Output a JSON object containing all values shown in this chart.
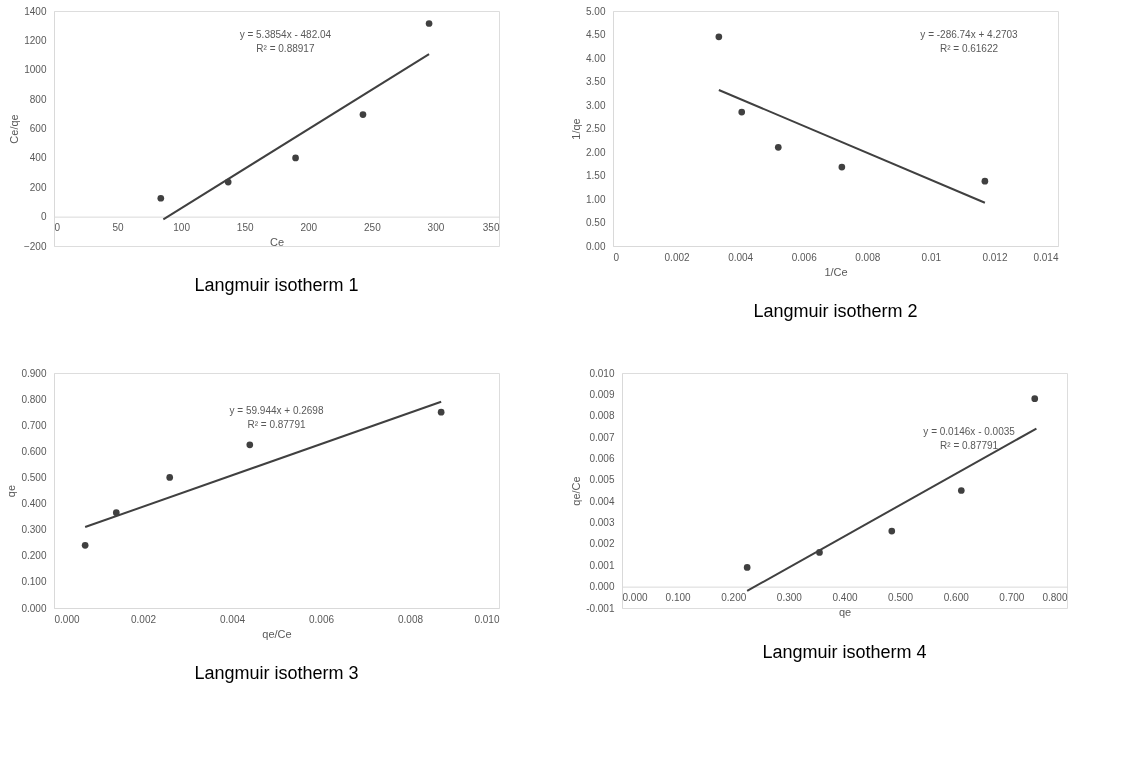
{
  "chart_data": [
    {
      "type": "scatter",
      "title": "Langmuir isotherm 1",
      "xlabel": "Ce",
      "ylabel": "Ce/qe",
      "grid": false,
      "xlim": [
        0,
        350
      ],
      "xticks": [
        0,
        50,
        100,
        150,
        200,
        250,
        300,
        350
      ],
      "ylim": [
        -200,
        1400
      ],
      "yticks": [
        -200,
        0,
        200,
        400,
        600,
        800,
        1000,
        1200,
        1400
      ],
      "series": [
        {
          "marker": "circle",
          "color": "#404040",
          "x": [
            84,
            137,
            190,
            243,
            295
          ],
          "values": [
            125,
            235,
            400,
            695,
            1315
          ]
        },
        {
          "type": "line",
          "marker": "none",
          "line_style": "solid",
          "color": "#404040",
          "x": [
            86,
            295
          ],
          "values": [
            -19,
            1107
          ]
        }
      ],
      "annotations": [
        "y = 5.3854x - 482.04",
        "R² = 0.88917"
      ]
    },
    {
      "type": "scatter",
      "title": "Langmuir isotherm 2",
      "xlabel": "1/Ce",
      "ylabel": "1/qe",
      "grid": false,
      "xlim": [
        0,
        0.014
      ],
      "xticks": [
        0,
        0.002,
        0.004,
        0.006,
        0.008,
        0.01,
        0.012,
        0.014
      ],
      "ylim": [
        0,
        5
      ],
      "yticks": [
        {
          "value": 0,
          "label": "0.00"
        },
        {
          "value": 0.5,
          "label": "0.50"
        },
        {
          "value": 1,
          "label": "1.00"
        },
        {
          "value": 1.5,
          "label": "1.50"
        },
        {
          "value": 2,
          "label": "2.00"
        },
        {
          "value": 2.5,
          "label": "2.50"
        },
        {
          "value": 3,
          "label": "3.00"
        },
        {
          "value": 3.5,
          "label": "3.50"
        },
        {
          "value": 4,
          "label": "4.00"
        },
        {
          "value": 4.5,
          "label": "4.50"
        },
        {
          "value": 5,
          "label": "5.00"
        }
      ],
      "series": [
        {
          "marker": "circle",
          "color": "#404040",
          "x": [
            0.00333,
            0.00405,
            0.0052,
            0.0072,
            0.0117
          ],
          "values": [
            4.45,
            2.85,
            2.1,
            1.68,
            1.38
          ]
        },
        {
          "type": "line",
          "marker": "none",
          "line_style": "solid",
          "color": "#404040",
          "x": [
            0.00333,
            0.0117
          ],
          "values": [
            3.32,
            0.92
          ]
        }
      ],
      "annotations": [
        "y = -286.74x + 4.2703",
        "R² = 0.61622"
      ]
    },
    {
      "type": "scatter",
      "title": "Langmuir isotherm 3",
      "xlabel": "qe/Ce",
      "ylabel": "qe",
      "grid": false,
      "xlim": [
        0,
        0.01
      ],
      "xticks": [
        {
          "value": 0,
          "label": "0.000"
        },
        {
          "value": 0.002,
          "label": "0.002"
        },
        {
          "value": 0.004,
          "label": "0.004"
        },
        {
          "value": 0.006,
          "label": "0.006"
        },
        {
          "value": 0.008,
          "label": "0.008"
        },
        {
          "value": 0.01,
          "label": "0.010"
        }
      ],
      "ylim": [
        0,
        0.9
      ],
      "yticks": [
        {
          "value": 0,
          "label": "0.000"
        },
        {
          "value": 0.1,
          "label": "0.100"
        },
        {
          "value": 0.2,
          "label": "0.200"
        },
        {
          "value": 0.3,
          "label": "0.300"
        },
        {
          "value": 0.4,
          "label": "0.400"
        },
        {
          "value": 0.5,
          "label": "0.500"
        },
        {
          "value": 0.6,
          "label": "0.600"
        },
        {
          "value": 0.7,
          "label": "0.700"
        },
        {
          "value": 0.8,
          "label": "0.800"
        },
        {
          "value": 0.9,
          "label": "0.900"
        }
      ],
      "series": [
        {
          "marker": "circle",
          "color": "#404040",
          "x": [
            0.0007,
            0.0014,
            0.0026,
            0.0044,
            0.0087
          ],
          "values": [
            0.24,
            0.365,
            0.5,
            0.625,
            0.75
          ]
        },
        {
          "type": "line",
          "marker": "none",
          "line_style": "solid",
          "color": "#404040",
          "x": [
            0.0007,
            0.0087
          ],
          "values": [
            0.31,
            0.79
          ]
        }
      ],
      "annotations": [
        "y = 59.944x + 0.2698",
        "R² = 0.87791"
      ]
    },
    {
      "type": "scatter",
      "title": "Langmuir isotherm 4",
      "xlabel": "qe",
      "ylabel": "qe/Ce",
      "grid": false,
      "xlim": [
        0,
        0.8
      ],
      "xticks": [
        {
          "value": 0,
          "label": "0.000"
        },
        {
          "value": 0.1,
          "label": "0.100"
        },
        {
          "value": 0.2,
          "label": "0.200"
        },
        {
          "value": 0.3,
          "label": "0.300"
        },
        {
          "value": 0.4,
          "label": "0.400"
        },
        {
          "value": 0.5,
          "label": "0.500"
        },
        {
          "value": 0.6,
          "label": "0.600"
        },
        {
          "value": 0.7,
          "label": "0.700"
        },
        {
          "value": 0.8,
          "label": "0.800"
        }
      ],
      "ylim": [
        -0.001,
        0.01
      ],
      "yticks": [
        {
          "value": -0.001,
          "label": "-0.001"
        },
        {
          "value": 0,
          "label": "0.000"
        },
        {
          "value": 0.001,
          "label": "0.001"
        },
        {
          "value": 0.002,
          "label": "0.002"
        },
        {
          "value": 0.003,
          "label": "0.003"
        },
        {
          "value": 0.004,
          "label": "0.004"
        },
        {
          "value": 0.005,
          "label": "0.005"
        },
        {
          "value": 0.006,
          "label": "0.006"
        },
        {
          "value": 0.007,
          "label": "0.007"
        },
        {
          "value": 0.008,
          "label": "0.008"
        },
        {
          "value": 0.009,
          "label": "0.009"
        },
        {
          "value": 0.01,
          "label": "0.010"
        }
      ],
      "series": [
        {
          "marker": "circle",
          "color": "#404040",
          "x": [
            0.225,
            0.355,
            0.485,
            0.61,
            0.742
          ],
          "values": [
            0.0009,
            0.0016,
            0.0026,
            0.0045,
            0.0088
          ]
        },
        {
          "type": "line",
          "marker": "none",
          "line_style": "solid",
          "color": "#404040",
          "x": [
            0.225,
            0.745
          ],
          "values": [
            -0.0002,
            0.0074
          ]
        }
      ],
      "annotations": [
        "y = 0.0146x - 0.0035",
        "R² = 0.87791"
      ]
    }
  ]
}
